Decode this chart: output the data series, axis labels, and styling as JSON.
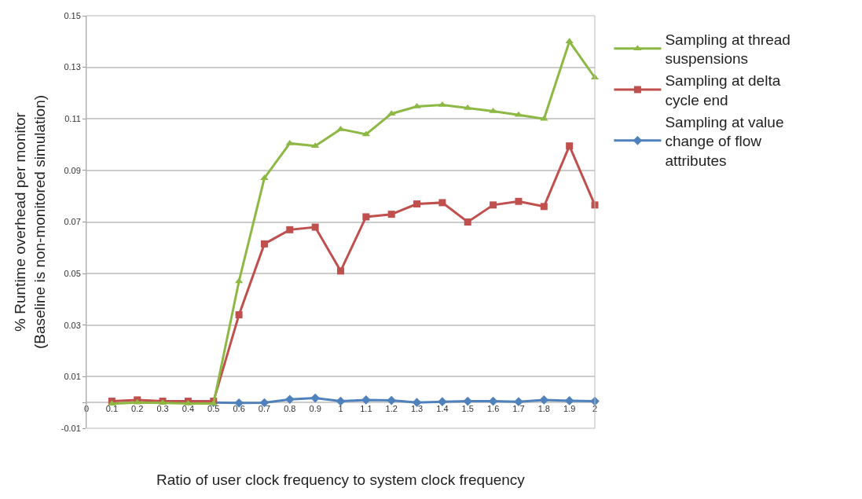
{
  "chart_data": {
    "type": "line",
    "xlabel": "Ratio of user clock frequency to system clock frequency",
    "ylabel": "% Runtime overhead per monitor\n(Baseline is non-monitored simulation)",
    "x": [
      0.1,
      0.2,
      0.3,
      0.4,
      0.5,
      0.6,
      0.7,
      0.8,
      0.9,
      1,
      1.1,
      1.2,
      1.3,
      1.4,
      1.5,
      1.6,
      1.7,
      1.8,
      1.9,
      2
    ],
    "xlim": [
      0,
      2
    ],
    "xticks": [
      0,
      0.1,
      0.2,
      0.3,
      0.4,
      0.5,
      0.6,
      0.7,
      0.8,
      0.9,
      1,
      1.1,
      1.2,
      1.3,
      1.4,
      1.5,
      1.6,
      1.7,
      1.8,
      1.9,
      2
    ],
    "ylim": [
      -0.01,
      0.15
    ],
    "yticks": [
      -0.01,
      {
        "value": 0,
        "label": null
      },
      0.01,
      0.03,
      0.05,
      0.07,
      0.09,
      0.11,
      0.13,
      0.15
    ],
    "grid": "y",
    "legend": "right",
    "line_style": "solid",
    "series": [
      {
        "name": "Sampling at thread suspensions",
        "color": "#8db843",
        "marker": "triangle",
        "values": [
          -0.0005,
          0,
          -0.0002,
          -0.0004,
          -0.0004,
          0.047,
          0.087,
          0.1005,
          0.0995,
          0.106,
          0.104,
          0.112,
          0.1148,
          0.1154,
          0.1142,
          0.113,
          0.1115,
          0.11,
          0.14,
          0.126
        ]
      },
      {
        "name": "Sampling at delta cycle end",
        "color": "#c0504d",
        "marker": "square",
        "values": [
          0.0005,
          0.001,
          0.0005,
          0.0005,
          0.0005,
          0.034,
          0.0615,
          0.067,
          0.068,
          0.051,
          0.072,
          0.073,
          0.077,
          0.0775,
          0.07,
          0.0766,
          0.078,
          0.076,
          0.0995,
          0.0766
        ]
      },
      {
        "name": "Sampling at value change of flow attributes",
        "color": "#4f81bd",
        "marker": "diamond",
        "values": [
          null,
          null,
          null,
          null,
          0,
          -0.0002,
          -0.0001,
          0.0012,
          0.0017,
          0.0005,
          0.001,
          0.0008,
          0,
          0.0003,
          0.0005,
          0.0005,
          0.0003,
          0.001,
          0.0007,
          0.0005
        ]
      }
    ]
  }
}
